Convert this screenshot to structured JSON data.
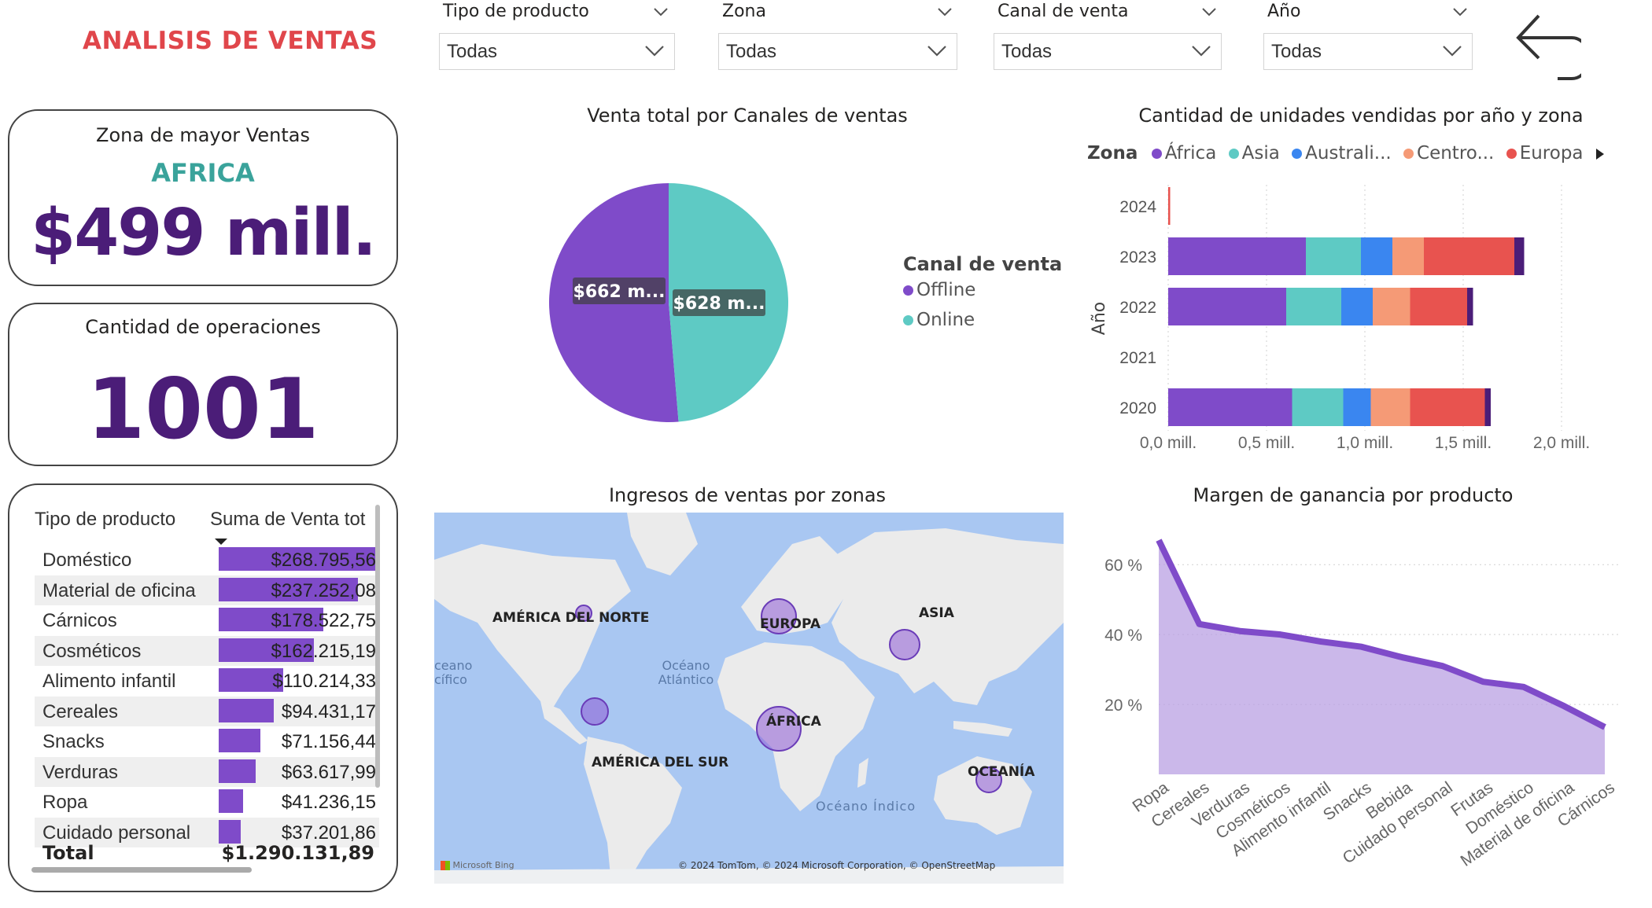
{
  "header": {
    "title": "ANALISIS DE VENTAS"
  },
  "filters": [
    {
      "label": "Tipo de producto",
      "value": "Todas"
    },
    {
      "label": "Zona",
      "value": "Todas"
    },
    {
      "label": "Canal de venta",
      "value": "Todas"
    },
    {
      "label": "Año",
      "value": "Todas"
    }
  ],
  "cards": {
    "top_zone": {
      "title": "Zona de mayor Ventas",
      "zone": "AFRICA",
      "value": "$499 mill."
    },
    "operations": {
      "title": "Cantidad de operaciones",
      "value": "1001"
    }
  },
  "product_table": {
    "col_name": "Tipo de producto",
    "col_value": "Suma de Venta tot",
    "rows": [
      {
        "name": "Doméstico",
        "value": "$268.795,56",
        "amount": 268795.56
      },
      {
        "name": "Material de oficina",
        "value": "$237.252,08",
        "amount": 237252.08
      },
      {
        "name": "Cárnicos",
        "value": "$178.522,75",
        "amount": 178522.75
      },
      {
        "name": "Cosméticos",
        "value": "$162.215,19",
        "amount": 162215.19
      },
      {
        "name": "Alimento infantil",
        "value": "$110.214,33",
        "amount": 110214.33
      },
      {
        "name": "Cereales",
        "value": "$94.431,17",
        "amount": 94431.17
      },
      {
        "name": "Snacks",
        "value": "$71.156,44",
        "amount": 71156.44
      },
      {
        "name": "Verduras",
        "value": "$63.617,99",
        "amount": 63617.99
      },
      {
        "name": "Ropa",
        "value": "$41.236,15",
        "amount": 41236.15
      },
      {
        "name": "Cuidado personal",
        "value": "$37.201,86",
        "amount": 37201.86
      }
    ],
    "total_label": "Total",
    "total_value": "$1.290.131,89"
  },
  "map": {
    "title": "Ingresos de ventas por zonas",
    "labels": {
      "na": "AMÉRICA DEL NORTE",
      "eu": "EUROPA",
      "asia": "ASIA",
      "africa": "ÁFRICA",
      "sa": "AMÉRICA DEL SUR",
      "oceania": "OCEANÍA",
      "atl": "Océano Atlántico",
      "pac": "ceano cífico",
      "ind": "Océano Índico"
    },
    "brand": "Microsoft Bing",
    "attribution": "© 2024 TomTom, © 2024 Microsoft Corporation, © OpenStreetMap"
  },
  "colors": {
    "purple": "#7f4bc9",
    "teal": "#5ecac4",
    "blue": "#3a86f0",
    "salmon": "#f59a76",
    "red": "#e8534f",
    "dark": "#4b1d78",
    "title": "#e0464b"
  },
  "chart_data": [
    {
      "type": "pie",
      "title": "Venta total por Canales de ventas",
      "legend_title": "Canal de venta",
      "legend_position": "right",
      "categories": [
        "Offline",
        "Online"
      ],
      "values": [
        662,
        628
      ],
      "unit": "mill.",
      "labels": [
        "$662 m...",
        "$628 m..."
      ]
    },
    {
      "type": "bar",
      "orientation": "horizontal",
      "stacked": true,
      "title": "Cantidad de unidades vendidas por año y zona",
      "legend_title": "Zona",
      "legend_position": "top",
      "legend": [
        "África",
        "Asia",
        "Australi...",
        "Centro...",
        "Europa"
      ],
      "ylabel": "Año",
      "categories": [
        "2024",
        "2023",
        "2022",
        "2021",
        "2020"
      ],
      "x_ticks": [
        "0,0 mill.",
        "0,5 mill.",
        "1,0 mill.",
        "1,5 mill.",
        "2,0 mill."
      ],
      "xlim": [
        0,
        2.0
      ],
      "series": [
        {
          "name": "África",
          "values": [
            0,
            0.7,
            0.6,
            0,
            0.63
          ]
        },
        {
          "name": "Asia",
          "values": [
            0,
            0.28,
            0.28,
            0,
            0.26
          ]
        },
        {
          "name": "Australi...",
          "values": [
            0,
            0.16,
            0.16,
            0,
            0.14
          ]
        },
        {
          "name": "Centro...",
          "values": [
            0,
            0.16,
            0.19,
            0,
            0.2
          ]
        },
        {
          "name": "Europa",
          "values": [
            0.01,
            0.46,
            0.29,
            0,
            0.38
          ]
        },
        {
          "values": [
            0,
            0.05,
            0.03,
            0,
            0.03
          ]
        }
      ]
    },
    {
      "type": "area",
      "title": "Margen de ganancia por producto",
      "categories": [
        "Ropa",
        "Cereales",
        "Verduras",
        "Cosméticos",
        "Alimento infantil",
        "Snacks",
        "Bebida",
        "Cuidado personal",
        "Frutas",
        "Doméstico",
        "Material de oficina",
        "Cárnicos"
      ],
      "values": [
        67,
        43,
        41,
        40,
        38,
        36.5,
        33.5,
        31,
        26.5,
        25,
        19.5,
        13.5
      ],
      "y_ticks": [
        "20 %",
        "40 %",
        "60 %"
      ],
      "ylim": [
        0,
        72
      ]
    }
  ]
}
